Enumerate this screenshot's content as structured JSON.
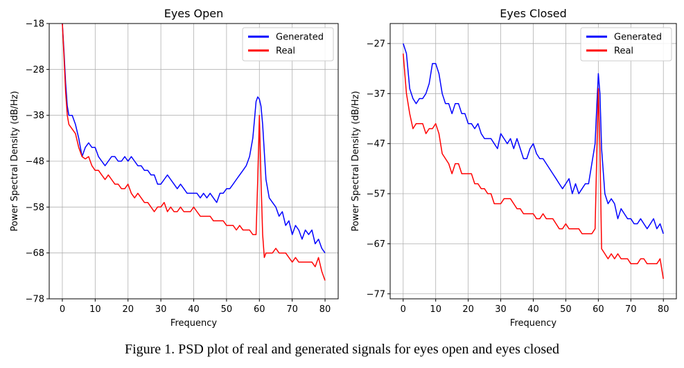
{
  "caption": "Figure 1. PSD plot of real and generated signals for eyes open and eyes closed",
  "chart_data": [
    {
      "type": "line",
      "title": "Eyes Open",
      "xlabel": "Frequency",
      "ylabel": "Power Spectral Density (dB/Hz)",
      "xlim": [
        -4,
        84
      ],
      "ylim": [
        -78,
        -18
      ],
      "xticks": [
        0,
        10,
        20,
        30,
        40,
        50,
        60,
        70,
        80
      ],
      "yticks": [
        -18,
        -28,
        -38,
        -48,
        -58,
        -68,
        -78
      ],
      "grid": true,
      "legend_position": "top-right",
      "series": [
        {
          "name": "Generated",
          "color": "#0000ff",
          "x": [
            0,
            0.5,
            1,
            1.5,
            2,
            3,
            4,
            5,
            6,
            7,
            8,
            9,
            10,
            11,
            12,
            13,
            14,
            15,
            16,
            17,
            18,
            19,
            20,
            21,
            22,
            23,
            24,
            25,
            26,
            27,
            28,
            29,
            30,
            31,
            32,
            33,
            34,
            35,
            36,
            37,
            38,
            39,
            40,
            41,
            42,
            43,
            44,
            45,
            46,
            47,
            48,
            49,
            50,
            51,
            52,
            53,
            54,
            55,
            56,
            57,
            58,
            58.5,
            59,
            59.5,
            60,
            60.5,
            61,
            62,
            63,
            64,
            65,
            66,
            67,
            68,
            69,
            70,
            71,
            72,
            73,
            74,
            75,
            76,
            77,
            78,
            79,
            80
          ],
          "y": [
            -18,
            -24,
            -31,
            -36,
            -38,
            -38,
            -40,
            -43,
            -47,
            -45,
            -44,
            -45,
            -45,
            -47,
            -48,
            -49,
            -48,
            -47,
            -47,
            -48,
            -48,
            -47,
            -48,
            -47,
            -48,
            -49,
            -49,
            -50,
            -50,
            -51,
            -51,
            -53,
            -53,
            -52,
            -51,
            -52,
            -53,
            -54,
            -53,
            -54,
            -55,
            -55,
            -55,
            -55,
            -56,
            -55,
            -56,
            -55,
            -56,
            -57,
            -55,
            -55,
            -54,
            -54,
            -53,
            -52,
            -51,
            -50,
            -49,
            -47,
            -43,
            -39,
            -35,
            -34,
            -34.5,
            -36,
            -40,
            -52,
            -56,
            -57,
            -58,
            -60,
            -59,
            -62,
            -61,
            -64,
            -62,
            -63,
            -65,
            -63,
            -64,
            -63,
            -66,
            -65,
            -67,
            -68
          ]
        },
        {
          "name": "Real",
          "color": "#ff0000",
          "x": [
            0,
            0.5,
            1,
            1.5,
            2,
            3,
            4,
            5,
            6,
            7,
            8,
            9,
            10,
            11,
            12,
            13,
            14,
            15,
            16,
            17,
            18,
            19,
            20,
            21,
            22,
            23,
            24,
            25,
            26,
            27,
            28,
            29,
            30,
            31,
            32,
            33,
            34,
            35,
            36,
            37,
            38,
            39,
            40,
            41,
            42,
            43,
            44,
            45,
            46,
            47,
            48,
            49,
            50,
            51,
            52,
            53,
            54,
            55,
            56,
            57,
            58,
            59,
            59.5,
            60,
            60.5,
            61,
            61.5,
            62,
            63,
            64,
            65,
            66,
            67,
            68,
            69,
            70,
            71,
            72,
            73,
            74,
            75,
            76,
            77,
            78,
            79,
            80
          ],
          "y": [
            -18,
            -25,
            -33,
            -38,
            -40,
            -41,
            -42,
            -45,
            -47,
            -47.5,
            -47,
            -49,
            -50,
            -50,
            -51,
            -52,
            -51,
            -52,
            -53,
            -53,
            -54,
            -54,
            -53,
            -55,
            -56,
            -55,
            -56,
            -57,
            -57,
            -58,
            -59,
            -58,
            -58,
            -57,
            -59,
            -58,
            -59,
            -59,
            -58,
            -59,
            -59,
            -59,
            -58,
            -59,
            -60,
            -60,
            -60,
            -60,
            -61,
            -61,
            -61,
            -61,
            -62,
            -62,
            -62,
            -63,
            -62,
            -63,
            -63,
            -63,
            -64,
            -64,
            -52,
            -38,
            -52,
            -64,
            -69,
            -68,
            -68,
            -68,
            -67,
            -68,
            -68,
            -68,
            -69,
            -70,
            -69,
            -70,
            -70,
            -70,
            -70,
            -70,
            -71,
            -69,
            -72,
            -74
          ]
        }
      ]
    },
    {
      "type": "line",
      "title": "Eyes Closed",
      "xlabel": "Frequency",
      "ylabel": "Power Spectral Density (dB/Hz)",
      "xlim": [
        -4,
        84
      ],
      "ylim": [
        -78,
        -23
      ],
      "xticks": [
        0,
        10,
        20,
        30,
        40,
        50,
        60,
        70,
        80
      ],
      "yticks": [
        -27,
        -37,
        -47,
        -57,
        -67,
        -77
      ],
      "grid": true,
      "legend_position": "top-right",
      "series": [
        {
          "name": "Generated",
          "color": "#0000ff",
          "x": [
            0,
            1,
            2,
            3,
            4,
            5,
            6,
            7,
            8,
            9,
            10,
            11,
            12,
            13,
            14,
            15,
            16,
            17,
            18,
            19,
            20,
            21,
            22,
            23,
            24,
            25,
            26,
            27,
            28,
            29,
            30,
            31,
            32,
            33,
            34,
            35,
            36,
            37,
            38,
            39,
            40,
            41,
            42,
            43,
            44,
            45,
            46,
            47,
            48,
            49,
            50,
            51,
            52,
            53,
            54,
            55,
            56,
            57,
            58,
            59,
            59.5,
            60,
            60.5,
            61,
            62,
            63,
            64,
            65,
            66,
            67,
            68,
            69,
            70,
            71,
            72,
            73,
            74,
            75,
            76,
            77,
            78,
            79,
            80
          ],
          "y": [
            -27,
            -29,
            -36,
            -38,
            -39,
            -38,
            -38,
            -37,
            -35,
            -31,
            -31,
            -33,
            -37,
            -39,
            -39,
            -41,
            -39,
            -39,
            -41,
            -41,
            -43,
            -43,
            -44,
            -43,
            -45,
            -46,
            -46,
            -46,
            -47,
            -48,
            -45,
            -46,
            -47,
            -46,
            -48,
            -46,
            -48,
            -50,
            -50,
            -48,
            -47,
            -49,
            -50,
            -50,
            -51,
            -52,
            -53,
            -54,
            -55,
            -56,
            -55,
            -54,
            -57,
            -55,
            -57,
            -56,
            -55,
            -55,
            -51,
            -47,
            -40,
            -33,
            -37,
            -48,
            -57,
            -59,
            -58,
            -59,
            -62,
            -60,
            -61,
            -62,
            -62,
            -63,
            -63,
            -62,
            -63,
            -64,
            -63,
            -62,
            -64,
            -63,
            -65
          ]
        },
        {
          "name": "Real",
          "color": "#ff0000",
          "x": [
            0,
            1,
            2,
            3,
            4,
            5,
            6,
            7,
            8,
            9,
            10,
            11,
            12,
            13,
            14,
            15,
            16,
            17,
            18,
            19,
            20,
            21,
            22,
            23,
            24,
            25,
            26,
            27,
            28,
            29,
            30,
            31,
            32,
            33,
            34,
            35,
            36,
            37,
            38,
            39,
            40,
            41,
            42,
            43,
            44,
            45,
            46,
            47,
            48,
            49,
            50,
            51,
            52,
            53,
            54,
            55,
            56,
            57,
            58,
            59,
            59.5,
            60,
            60.5,
            61,
            62,
            63,
            64,
            65,
            66,
            67,
            68,
            69,
            70,
            71,
            72,
            73,
            74,
            75,
            76,
            77,
            78,
            79,
            80
          ],
          "y": [
            -29,
            -37,
            -41,
            -44,
            -43,
            -43,
            -43,
            -45,
            -44,
            -44,
            -43,
            -45,
            -49,
            -50,
            -51,
            -53,
            -51,
            -51,
            -53,
            -53,
            -53,
            -53,
            -55,
            -55,
            -56,
            -56,
            -57,
            -57,
            -59,
            -59,
            -59,
            -58,
            -58,
            -58,
            -59,
            -60,
            -60,
            -61,
            -61,
            -61,
            -61,
            -62,
            -62,
            -61,
            -62,
            -62,
            -62,
            -63,
            -64,
            -64,
            -63,
            -64,
            -64,
            -64,
            -64,
            -65,
            -65,
            -65,
            -65,
            -64,
            -50,
            -36,
            -48,
            -68,
            -69,
            -70,
            -69,
            -70,
            -69,
            -70,
            -70,
            -70,
            -71,
            -71,
            -71,
            -70,
            -70,
            -71,
            -71,
            -71,
            -71,
            -70,
            -74
          ]
        }
      ]
    }
  ]
}
